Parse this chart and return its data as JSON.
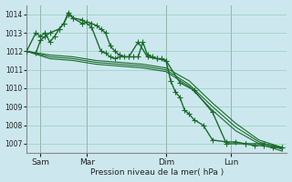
{
  "background_color": "#cce8ee",
  "grid_color": "#99ccbb",
  "line_color": "#1a6b2a",
  "xlabel": "Pression niveau de la mer( hPa )",
  "ylim": [
    1006.5,
    1014.5
  ],
  "yticks": [
    1007,
    1008,
    1009,
    1010,
    1011,
    1012,
    1013,
    1014
  ],
  "xlim": [
    0,
    56
  ],
  "xtick_positions": [
    3,
    13,
    30,
    44,
    52
  ],
  "xtick_labels": [
    "Sam",
    "Mar",
    "Dim",
    "Lun",
    ""
  ],
  "vline_positions": [
    3,
    13,
    30,
    44
  ],
  "lines": [
    {
      "x": [
        0,
        2,
        3,
        4,
        5,
        6,
        7,
        8,
        9,
        10,
        12,
        13,
        14,
        15,
        16,
        17,
        18,
        19,
        20,
        21,
        22,
        23,
        24,
        25,
        26,
        27,
        28,
        29,
        30,
        31,
        32,
        33,
        34,
        35,
        36,
        38,
        40,
        43,
        45,
        47,
        49,
        51,
        53,
        55
      ],
      "y": [
        1012.0,
        1013.0,
        1012.8,
        1013.0,
        1012.5,
        1012.8,
        1013.2,
        1013.5,
        1014.0,
        1013.8,
        1013.5,
        1013.6,
        1013.5,
        1013.4,
        1013.2,
        1013.0,
        1012.3,
        1012.0,
        1011.8,
        1011.7,
        1011.7,
        1011.7,
        1011.7,
        1012.5,
        1011.8,
        1011.7,
        1011.6,
        1011.6,
        1011.5,
        1010.4,
        1009.8,
        1009.5,
        1008.8,
        1008.6,
        1008.3,
        1008.0,
        1007.2,
        1007.1,
        1007.1,
        1007.0,
        1006.9,
        1006.9,
        1006.8,
        1006.8
      ],
      "lw": 1.0,
      "marker": "+",
      "ms": 4.0,
      "zorder": 4
    },
    {
      "x": [
        0,
        2,
        3,
        4,
        5,
        7,
        8,
        9,
        10,
        12,
        14,
        16,
        17,
        18,
        19,
        20,
        22,
        24,
        26,
        28,
        30,
        33,
        36,
        40,
        43,
        47,
        51,
        55
      ],
      "y": [
        1012.0,
        1011.9,
        1012.6,
        1012.8,
        1013.0,
        1013.2,
        1013.5,
        1014.1,
        1013.8,
        1013.7,
        1013.3,
        1012.0,
        1011.9,
        1011.7,
        1011.6,
        1011.7,
        1011.7,
        1012.5,
        1011.7,
        1011.6,
        1011.5,
        1010.3,
        1009.9,
        1008.7,
        1007.0,
        1007.0,
        1007.0,
        1006.8
      ],
      "lw": 1.0,
      "marker": "+",
      "ms": 4.0,
      "zorder": 5
    },
    {
      "x": [
        0,
        5,
        10,
        15,
        20,
        25,
        30,
        35,
        40,
        45,
        50,
        55
      ],
      "y": [
        1012.0,
        1011.8,
        1011.7,
        1011.5,
        1011.4,
        1011.3,
        1011.1,
        1010.4,
        1009.2,
        1008.1,
        1007.2,
        1006.8
      ],
      "lw": 0.8,
      "marker": null,
      "ms": 0,
      "zorder": 2
    },
    {
      "x": [
        0,
        5,
        10,
        15,
        20,
        25,
        30,
        35,
        40,
        45,
        50,
        55
      ],
      "y": [
        1012.0,
        1011.7,
        1011.6,
        1011.4,
        1011.3,
        1011.2,
        1011.0,
        1010.2,
        1009.0,
        1007.9,
        1007.1,
        1006.7
      ],
      "lw": 0.8,
      "marker": null,
      "ms": 0,
      "zorder": 2
    },
    {
      "x": [
        0,
        5,
        10,
        15,
        20,
        25,
        30,
        35,
        40,
        45,
        50,
        55
      ],
      "y": [
        1012.0,
        1011.6,
        1011.5,
        1011.3,
        1011.2,
        1011.1,
        1010.9,
        1010.1,
        1008.8,
        1007.7,
        1007.0,
        1006.6
      ],
      "lw": 0.8,
      "marker": null,
      "ms": 0,
      "zorder": 2
    }
  ]
}
